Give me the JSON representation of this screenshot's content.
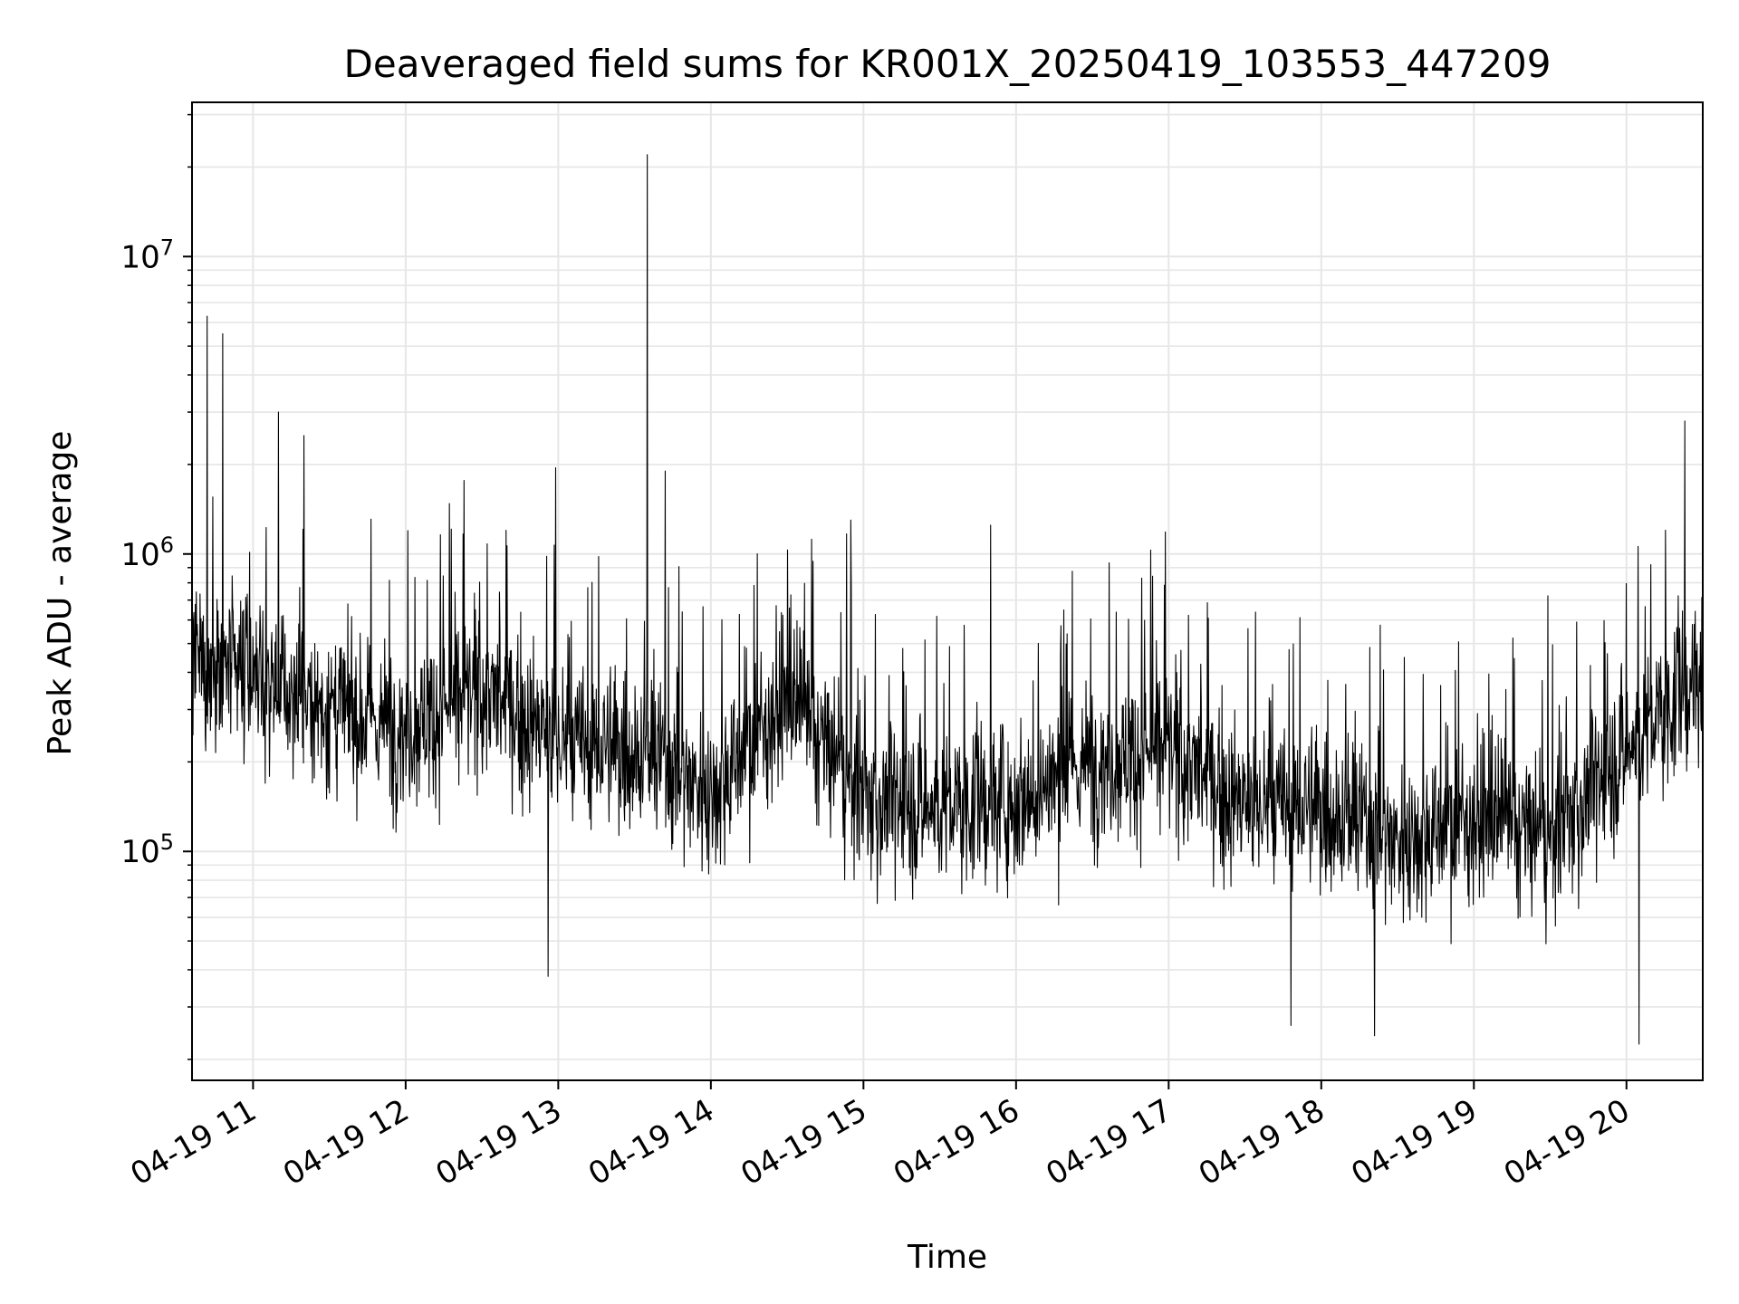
{
  "chart_data": {
    "type": "line",
    "title": "Deaveraged field sums for KR001X_20250419_103553_447209",
    "xlabel": "Time",
    "ylabel": "Peak ADU - average",
    "yscale": "log",
    "ylim": [
      17000,
      33000000
    ],
    "xlim": [
      "2025-04-19T10:36:00",
      "2025-04-19T20:30:00"
    ],
    "grid": true,
    "line_color": "#000000",
    "grid_color": "#e6e6e6",
    "x_tick_labels": [
      "04-19 11",
      "04-19 12",
      "04-19 13",
      "04-19 14",
      "04-19 15",
      "04-19 16",
      "04-19 17",
      "04-19 18",
      "04-19 19",
      "04-19 20"
    ],
    "x_tick_values": [
      "2025-04-19T11:00",
      "2025-04-19T12:00",
      "2025-04-19T13:00",
      "2025-04-19T14:00",
      "2025-04-19T15:00",
      "2025-04-19T16:00",
      "2025-04-19T17:00",
      "2025-04-19T18:00",
      "2025-04-19T19:00",
      "2025-04-19T20:00"
    ],
    "y_tick_labels": [
      {
        "base": "10",
        "exp": "5",
        "value": 100000
      },
      {
        "base": "10",
        "exp": "6",
        "value": 1000000
      },
      {
        "base": "10",
        "exp": "7",
        "value": 10000000
      }
    ],
    "series": [
      {
        "x": [
          "2025-04-19T10:36",
          "2025-04-19T11:00",
          "2025-04-19T11:30",
          "2025-04-19T12:00",
          "2025-04-19T12:30",
          "2025-04-19T13:00",
          "2025-04-19T13:30",
          "2025-04-19T14:00",
          "2025-04-19T14:30",
          "2025-04-19T15:00",
          "2025-04-19T15:30",
          "2025-04-19T16:00",
          "2025-04-19T16:30",
          "2025-04-19T17:00",
          "2025-04-19T17:30",
          "2025-04-19T18:00",
          "2025-04-19T18:30",
          "2025-04-19T19:00",
          "2025-04-19T19:30",
          "2025-04-19T20:00",
          "2025-04-19T20:30"
        ],
        "y": [
          420000,
          380000,
          300000,
          260000,
          350000,
          230000,
          220000,
          160000,
          330000,
          150000,
          140000,
          150000,
          200000,
          220000,
          140000,
          140000,
          110000,
          130000,
          110000,
          220000,
          400000
        ],
        "spikes": [
          {
            "x": "2025-04-19T10:42",
            "y": 6300000
          },
          {
            "x": "2025-04-19T10:48",
            "y": 5500000
          },
          {
            "x": "2025-04-19T11:10",
            "y": 3000000
          },
          {
            "x": "2025-04-19T11:20",
            "y": 2500000
          },
          {
            "x": "2025-04-19T12:59",
            "y": 1950000
          },
          {
            "x": "2025-04-19T13:35",
            "y": 22000000
          },
          {
            "x": "2025-04-19T13:42",
            "y": 1900000
          },
          {
            "x": "2025-04-19T14:55",
            "y": 1300000
          },
          {
            "x": "2025-04-19T15:50",
            "y": 1250000
          },
          {
            "x": "2025-04-19T20:23",
            "y": 2800000
          },
          {
            "x": "2025-04-19T18:21",
            "y": 24000
          },
          {
            "x": "2025-04-19T20:05",
            "y": 22500
          },
          {
            "x": "2025-04-19T12:56",
            "y": 38000
          },
          {
            "x": "2025-04-19T17:48",
            "y": 26000
          }
        ]
      }
    ]
  }
}
